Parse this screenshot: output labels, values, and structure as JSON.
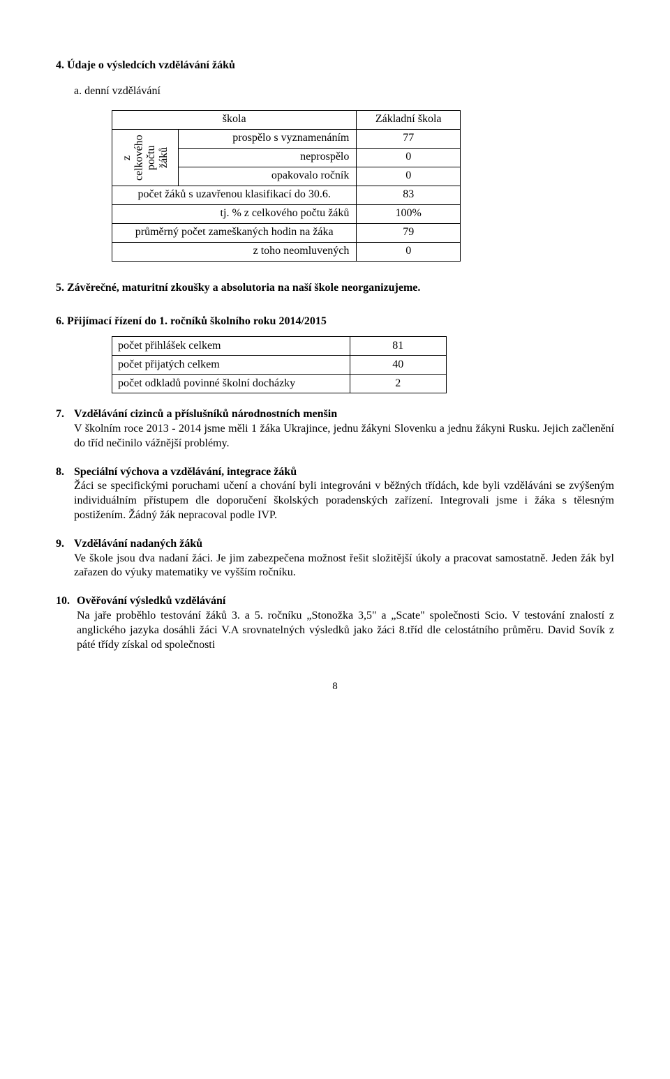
{
  "s4": {
    "heading": "4.  Údaje o výsledcích vzdělávání žáků",
    "sub": "a.  denní vzdělávání"
  },
  "t1": {
    "hdr_skola": "škola",
    "hdr_zs": "Základní škola",
    "rot_label": "z celkového\npočtu žáků",
    "r1_lab": "prospělo s vyznamenáním",
    "r1_val": "77",
    "r2_lab": "neprospělo",
    "r2_val": "0",
    "r3_lab": "opakovalo ročník",
    "r3_val": "0",
    "r4_lab": "počet žáků s uzavřenou klasifikací do 30.6.",
    "r4_val": "83",
    "r5_lab": "tj. % z celkového počtu žáků",
    "r5_val": "100%",
    "r6_lab": "průměrný počet zameškaných hodin na žáka",
    "r6_val": "79",
    "r7_lab": "z toho neomluvených",
    "r7_val": "0"
  },
  "s5": {
    "heading": "5. Závěrečné, maturitní zkoušky a absolutoria na naší škole neorganizujeme."
  },
  "s6": {
    "heading": "6.  Přijímací řízení do 1. ročníků školního roku 2014/2015"
  },
  "t2": {
    "r1_lab": "počet přihlášek celkem",
    "r1_val": "81",
    "r2_lab": "počet přijatých celkem",
    "r2_val": "40",
    "r3_lab": "počet odkladů povinné školní docházky",
    "r3_val": "2"
  },
  "s7": {
    "num": "7.",
    "title": "Vzdělávání cizinců a příslušníků národnostních menšin",
    "text": "V  školním roce 2013 - 2014 jsme měli 1 žáka Ukrajince, jednu žákyni Slovenku a jednu žákyni Rusku. Jejich začlenění do tříd nečinilo vážnější problémy."
  },
  "s8": {
    "num": "8.",
    "title": "Speciální výchova a vzdělávání, integrace žáků",
    "text": "Žáci se specifickými poruchami učení a chování byli integrováni v běžných třídách, kde byli vzděláváni se zvýšeným individuálním přístupem dle doporučení školských poradenských zařízení. Integrovali jsme i žáka s tělesným postižením. Žádný žák nepracoval podle IVP."
  },
  "s9": {
    "num": "9.",
    "title": "Vzdělávání nadaných žáků",
    "text": "Ve škole jsou dva nadaní žáci. Je jim zabezpečena možnost řešit složitější úkoly a pracovat samostatně. Jeden žák byl zařazen do výuky matematiky ve vyšším ročníku."
  },
  "s10": {
    "num": "10.",
    "title": "Ověřování výsledků vzdělávání",
    "text": "Na jaře proběhlo testování žáků 3. a 5. ročníku „Stonožka 3,5\" a „Scate\" společnosti Scio. V testování znalostí z anglického jazyka dosáhli žáci V.A srovnatelných výsledků jako žáci 8.tříd dle celostátního průměru. David Sovík z páté třídy získal od společnosti"
  },
  "pagenum": "8"
}
